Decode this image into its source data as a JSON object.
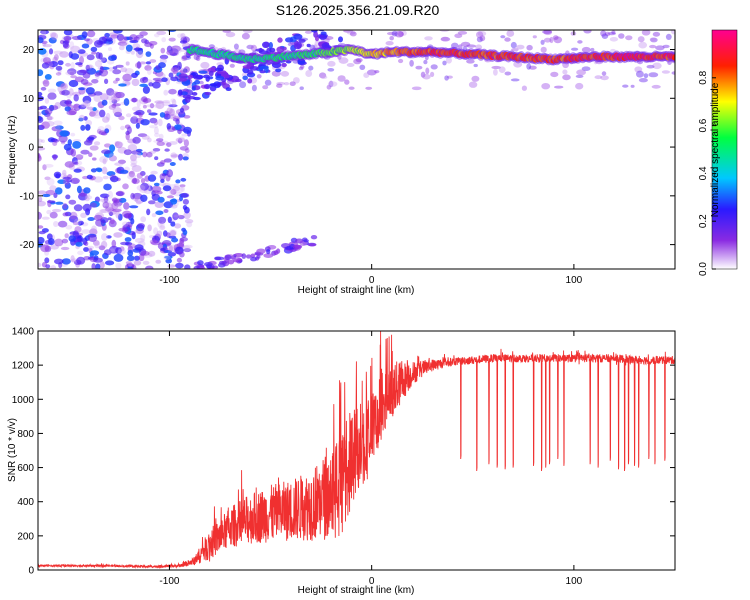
{
  "title": "S126.2025.356.21.09.R20",
  "chart_data": [
    {
      "type": "heatmap",
      "xlabel": "Height of straight line (km)",
      "ylabel": "Frequency (Hz)",
      "xlim": [
        -165,
        150
      ],
      "ylim": [
        -25,
        24
      ],
      "xticks": [
        -100,
        0,
        100
      ],
      "yticks": [
        -20,
        -10,
        0,
        10,
        20
      ],
      "colorbar": {
        "label": "Normalized spectral amplitude",
        "range": [
          0,
          1
        ],
        "ticks": [
          "0.0",
          "0.2",
          "0.4",
          "0.6",
          "0.8"
        ],
        "tick_values": [
          0.0,
          0.2,
          0.4,
          0.6,
          0.8
        ],
        "colormap": "rainbow (white → violet → blue → cyan → green → yellow → red → magenta)"
      },
      "ridge": {
        "description": "dominant frequency line",
        "x": [
          -90,
          -60,
          -30,
          -10,
          0,
          10,
          30,
          50,
          70,
          90,
          110,
          130,
          150
        ],
        "y": [
          20,
          18,
          19,
          20,
          19,
          19.5,
          19.5,
          19,
          18.5,
          18,
          18.5,
          18.5,
          18.5
        ],
        "amplitude": [
          0.4,
          0.4,
          0.45,
          0.6,
          0.7,
          0.8,
          0.9,
          0.85,
          0.9,
          0.85,
          0.9,
          0.95,
          0.9
        ]
      },
      "noise_region_x": [
        -165,
        -95
      ]
    },
    {
      "type": "line",
      "xlabel": "Height of straight line (km)",
      "ylabel": "SNR (10 * v/v)",
      "xlim": [
        -165,
        150
      ],
      "ylim": [
        0,
        1400
      ],
      "xticks": [
        -100,
        0,
        100
      ],
      "yticks": [
        0,
        200,
        400,
        600,
        800,
        1000,
        1200,
        1400
      ],
      "color": "#f03030",
      "series": [
        {
          "x": [
            -165,
            -150,
            -130,
            -110,
            -95,
            -88,
            -80,
            -70,
            -60,
            -50,
            -40,
            -30,
            -20,
            -15,
            -10,
            -5,
            0,
            5,
            10,
            15,
            20,
            25,
            30,
            40,
            50,
            60,
            70,
            80,
            90,
            100,
            110,
            120,
            130,
            140,
            150
          ],
          "values": [
            25,
            25,
            25,
            20,
            25,
            50,
            150,
            250,
            300,
            330,
            350,
            380,
            450,
            500,
            650,
            750,
            800,
            950,
            1050,
            1100,
            1150,
            1180,
            1200,
            1220,
            1230,
            1240,
            1240,
            1240,
            1240,
            1240,
            1240,
            1240,
            1230,
            1230,
            1230
          ],
          "spread": [
            10,
            10,
            10,
            10,
            15,
            40,
            150,
            200,
            250,
            280,
            300,
            350,
            450,
            500,
            500,
            450,
            400,
            350,
            300,
            200,
            120,
            80,
            60,
            40,
            40,
            40,
            40,
            40,
            40,
            40,
            40,
            40,
            40,
            40,
            40
          ]
        }
      ],
      "dropouts_x": [
        44,
        52,
        58,
        62,
        66,
        70,
        80,
        84,
        86,
        88,
        92,
        95,
        108,
        112,
        118,
        122,
        125,
        127,
        130,
        132,
        137,
        140,
        145
      ],
      "dropouts_y": [
        650,
        580,
        620,
        600,
        590,
        600,
        610,
        580,
        600,
        620,
        650,
        610,
        620,
        600,
        640,
        590,
        580,
        620,
        610,
        600,
        650,
        620,
        640
      ]
    }
  ]
}
